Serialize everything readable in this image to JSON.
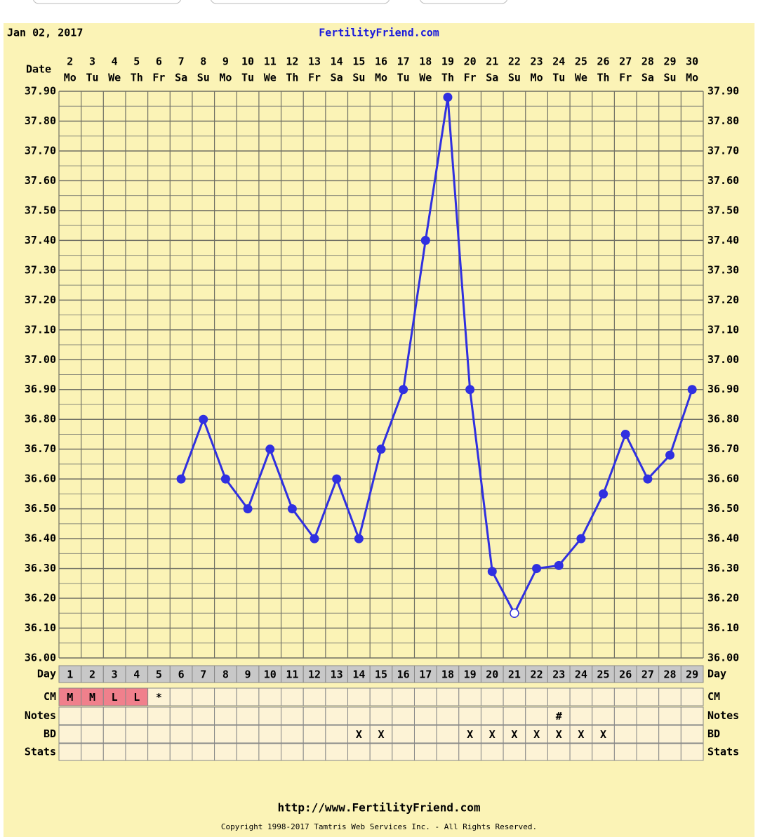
{
  "chart_data": {
    "type": "line",
    "title": "FertilityFriend.com",
    "date": "Jan 02, 2017",
    "date_label": "Date",
    "categories": [
      "2",
      "3",
      "4",
      "5",
      "6",
      "7",
      "8",
      "9",
      "10",
      "11",
      "12",
      "13",
      "14",
      "15",
      "16",
      "17",
      "18",
      "19",
      "20",
      "21",
      "22",
      "23",
      "24",
      "25",
      "26",
      "27",
      "28",
      "29",
      "30"
    ],
    "weekdays": [
      "Mo",
      "Tu",
      "We",
      "Th",
      "Fr",
      "Sa",
      "Su",
      "Mo",
      "Tu",
      "We",
      "Th",
      "Fr",
      "Sa",
      "Su",
      "Mo",
      "Tu",
      "We",
      "Th",
      "Fr",
      "Sa",
      "Su",
      "Mo",
      "Tu",
      "We",
      "Th",
      "Fr",
      "Sa",
      "Su",
      "Mo"
    ],
    "values": [
      null,
      null,
      null,
      null,
      null,
      36.6,
      36.8,
      36.6,
      36.5,
      36.7,
      36.5,
      36.4,
      36.6,
      36.4,
      36.7,
      36.9,
      37.4,
      37.88,
      36.9,
      36.29,
      36.15,
      36.3,
      36.31,
      36.4,
      36.55,
      36.75,
      36.6,
      36.68,
      36.9
    ],
    "color": "#3030e0",
    "hollow_points": [
      20
    ],
    "ylim": [
      36.0,
      37.9
    ],
    "yticks": [
      {
        "value": 36.0,
        "label": "36.00"
      },
      {
        "value": 36.1,
        "label": "36.10"
      },
      {
        "value": 36.2,
        "label": "36.20"
      },
      {
        "value": 36.3,
        "label": "36.30"
      },
      {
        "value": 36.4,
        "label": "36.40"
      },
      {
        "value": 36.5,
        "label": "36.50"
      },
      {
        "value": 36.6,
        "label": "36.60"
      },
      {
        "value": 36.7,
        "label": "36.70"
      },
      {
        "value": 36.8,
        "label": "36.80"
      },
      {
        "value": 36.9,
        "label": "36.90"
      },
      {
        "value": 37.0,
        "label": "37.00"
      },
      {
        "value": 37.1,
        "label": "37.10"
      },
      {
        "value": 37.2,
        "label": "37.20"
      },
      {
        "value": 37.3,
        "label": "37.30"
      },
      {
        "value": 37.4,
        "label": "37.40"
      },
      {
        "value": 37.5,
        "label": "37.50"
      },
      {
        "value": 37.6,
        "label": "37.60"
      },
      {
        "value": 37.7,
        "label": "37.70"
      },
      {
        "value": 37.8,
        "label": "37.80"
      },
      {
        "value": 37.9,
        "label": "37.90"
      }
    ],
    "minor_yticks": [
      36.05,
      36.15,
      36.25,
      36.35,
      36.45,
      36.55,
      36.65,
      36.75,
      36.85,
      36.95,
      37.05,
      37.15,
      37.25,
      37.35,
      37.45,
      37.55,
      37.65,
      37.75,
      37.85
    ],
    "grid": true,
    "row_labels": [
      "Day",
      "CM",
      "Notes",
      "BD",
      "Stats"
    ],
    "days": [
      1,
      2,
      3,
      4,
      5,
      6,
      7,
      8,
      9,
      10,
      11,
      12,
      13,
      14,
      15,
      16,
      17,
      18,
      19,
      20,
      21,
      22,
      23,
      24,
      25,
      26,
      27,
      28,
      29
    ],
    "cm": [
      "M",
      "M",
      "L",
      "L",
      "*",
      null,
      null,
      null,
      null,
      null,
      null,
      null,
      null,
      null,
      null,
      null,
      null,
      null,
      null,
      null,
      null,
      null,
      null,
      null,
      null,
      null,
      null,
      null,
      null
    ],
    "cm_colors": [
      "#f0808c",
      "#f0808c",
      "#f0808c",
      "#f0808c",
      null,
      null,
      null,
      null,
      null,
      null,
      null,
      null,
      null,
      null,
      null,
      null,
      null,
      null,
      null,
      null,
      null,
      null,
      null,
      null,
      null,
      null,
      null,
      null,
      null
    ],
    "notes": [
      null,
      null,
      null,
      null,
      null,
      null,
      null,
      null,
      null,
      null,
      null,
      null,
      null,
      null,
      null,
      null,
      null,
      null,
      null,
      null,
      null,
      null,
      "#",
      null,
      null,
      null,
      null,
      null,
      null
    ],
    "bd": [
      null,
      null,
      null,
      null,
      null,
      null,
      null,
      null,
      null,
      null,
      null,
      null,
      null,
      "X",
      "X",
      null,
      null,
      null,
      "X",
      "X",
      "X",
      "X",
      "X",
      "X",
      "X",
      null,
      null,
      null,
      null
    ],
    "footer_url": "http://www.FertilityFriend.com",
    "copyright": "Copyright 1998-2017 Tamtris Web Services Inc. - All Rights Reserved."
  }
}
